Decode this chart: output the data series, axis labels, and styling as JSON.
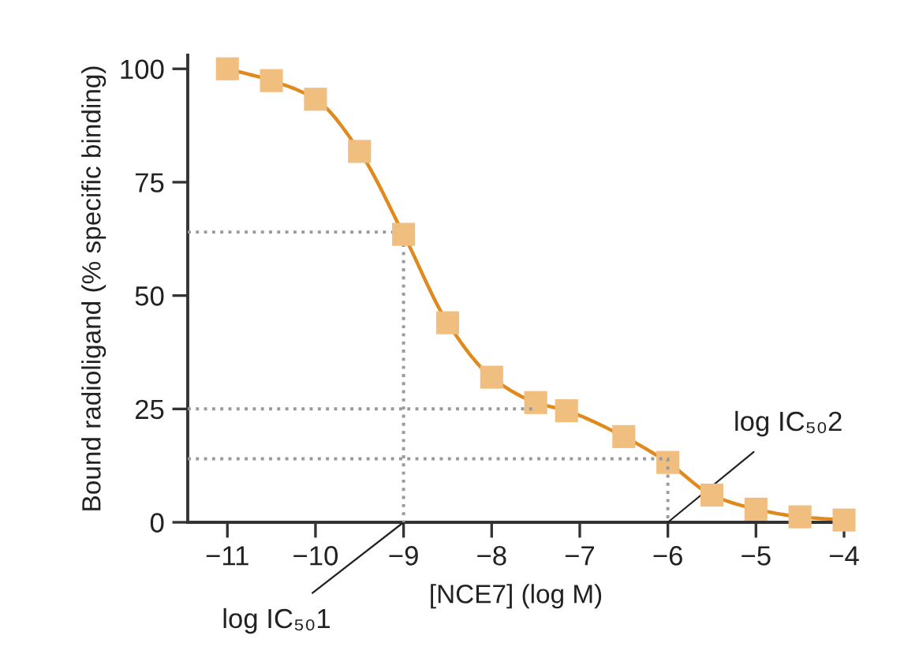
{
  "chart_data": {
    "type": "scatter",
    "xlabel": "[NCE7] (log M)",
    "ylabel": "Bound radioligand (% specific binding)",
    "xlim": [
      -11.45,
      -4
    ],
    "ylim": [
      0,
      103
    ],
    "xticks": [
      {
        "value": -11,
        "label": "−11"
      },
      {
        "value": -10,
        "label": "−10"
      },
      {
        "value": -9,
        "label": "−9"
      },
      {
        "value": -8,
        "label": "−8"
      },
      {
        "value": -7,
        "label": "−7"
      },
      {
        "value": -6,
        "label": "−6"
      },
      {
        "value": -5,
        "label": "−5"
      },
      {
        "value": -4,
        "label": "−4"
      }
    ],
    "yticks": [
      0,
      25,
      50,
      75,
      100
    ],
    "grid": false,
    "legend": false,
    "series": [
      {
        "type": "line",
        "color": "#e08a1e",
        "marker": "none",
        "line_style": "solid",
        "x": [
          -11,
          -10.5,
          -10,
          -9.5,
          -9,
          -8.5,
          -8,
          -7.5,
          -7.15,
          -6.5,
          -6,
          -5.5,
          -5,
          -4.5,
          -4
        ],
        "values": [
          100,
          97.4,
          93.3,
          81.8,
          63.5,
          44,
          32,
          26.4,
          24.6,
          18.9,
          13.2,
          6,
          2.9,
          1.2,
          0.5
        ]
      },
      {
        "color": "#f0bf7f",
        "marker": "square",
        "x": [
          -11,
          -10.5,
          -10,
          -9.5,
          -9,
          -8.5,
          -8,
          -7.5,
          -7.15,
          -6.5,
          -6,
          -5.5,
          -5,
          -4.5,
          -4
        ],
        "values": [
          100,
          97.4,
          93.3,
          81.8,
          63.5,
          44,
          32,
          26.4,
          24.6,
          18.9,
          13.2,
          6,
          2.9,
          1.2,
          0.5
        ]
      },
      {
        "type": "line",
        "color": "#999999",
        "marker": "none",
        "line_style": "dotted",
        "x": [
          -11.45,
          -9,
          -9
        ],
        "values": [
          64,
          64,
          0
        ]
      },
      {
        "type": "line",
        "color": "#999999",
        "marker": "none",
        "line_style": "dotted",
        "x": [
          -11.45,
          -7.5
        ],
        "values": [
          25,
          25
        ]
      },
      {
        "type": "line",
        "color": "#999999",
        "marker": "none",
        "line_style": "dotted",
        "x": [
          -11.45,
          -6,
          -6
        ],
        "values": [
          14,
          14,
          0
        ]
      }
    ],
    "annotations": [
      {
        "text": "log IC₅₀1",
        "x": -9,
        "y": 0
      },
      {
        "text": "log IC₅₀2",
        "x": -6,
        "y": 0
      }
    ]
  }
}
